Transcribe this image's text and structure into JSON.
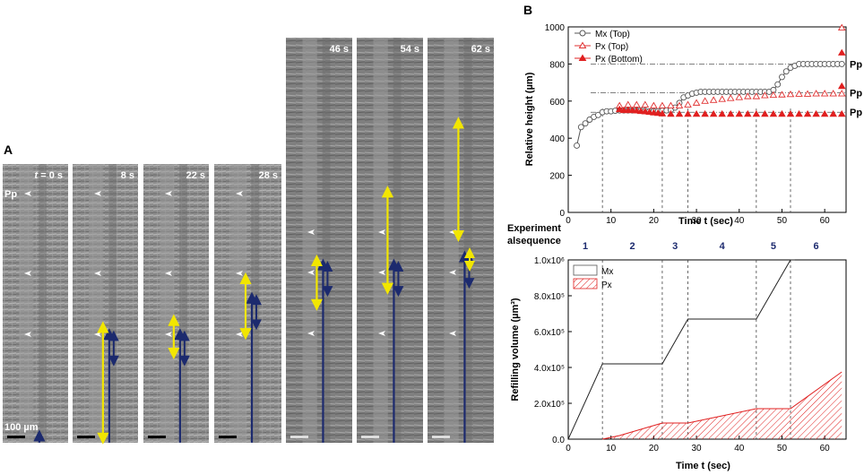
{
  "figure": {
    "panel_a_label": "A",
    "panel_b_label": "B",
    "pp_label": "Pp",
    "scale_bar_label": "100 µm",
    "t_prefix": "t",
    "frames": [
      {
        "time": "= 0 s",
        "arrowheads": 3
      },
      {
        "time": "8 s",
        "arrowheads": 3,
        "yellow": [
          0.585,
          0.985
        ],
        "blue": [
          0.61,
          1.0
        ]
      },
      {
        "time": "22 s",
        "arrowheads": 3,
        "yellow": [
          0.56,
          0.68
        ],
        "blue": [
          0.61,
          1.0
        ]
      },
      {
        "time": "28 s",
        "arrowheads": 3,
        "yellow": [
          0.41,
          0.61
        ],
        "blue": [
          0.48,
          1.0
        ]
      },
      {
        "time": "46 s",
        "arrowheads": 3,
        "yellow": [
          0.55,
          0.66
        ],
        "blue": [
          0.56,
          1.0
        ]
      },
      {
        "time": "54 s",
        "arrowheads": 3,
        "yellow": [
          0.38,
          0.62
        ],
        "blue": [
          0.56,
          1.0
        ]
      },
      {
        "time": "62 s",
        "arrowheads": 3,
        "yellow": [
          0.21,
          0.49
        ],
        "blue": [
          0.54,
          1.0
        ]
      }
    ],
    "experiment_label_line1": "Experiment",
    "experiment_label_line2": "alsequence",
    "sequences": [
      "1",
      "2",
      "3",
      "4",
      "5",
      "6"
    ],
    "right_pp_labels": [
      "Pp",
      "Pp",
      "Pp"
    ]
  },
  "chart_data": [
    {
      "type": "scatter",
      "title": "",
      "xlabel": "Time t (sec)",
      "ylabel": "Relative height (µm)",
      "xlim": [
        0,
        65
      ],
      "ylim": [
        0,
        1000
      ],
      "xticks": [
        0,
        10,
        20,
        30,
        40,
        50,
        60
      ],
      "yticks": [
        0,
        200,
        400,
        600,
        800,
        1000
      ],
      "legend": "top-left",
      "series": [
        {
          "name": "Mx (Top)",
          "marker": "open-circle",
          "color": "#555555",
          "x": [
            2,
            3,
            4,
            5,
            6,
            7,
            8,
            9,
            10,
            11,
            12,
            13,
            14,
            15,
            16,
            17,
            18,
            19,
            20,
            21,
            22,
            23,
            24,
            25,
            26,
            27,
            28,
            29,
            30,
            31,
            32,
            33,
            34,
            35,
            36,
            37,
            38,
            39,
            40,
            41,
            42,
            43,
            44,
            45,
            46,
            47,
            48,
            49,
            50,
            51,
            52,
            53,
            54,
            55,
            56,
            57,
            58,
            59,
            60,
            61,
            62,
            63,
            64
          ],
          "y": [
            360,
            460,
            480,
            500,
            515,
            525,
            540,
            545,
            545,
            548,
            550,
            550,
            550,
            550,
            550,
            550,
            548,
            545,
            545,
            545,
            548,
            550,
            552,
            565,
            590,
            620,
            630,
            640,
            645,
            650,
            650,
            650,
            650,
            650,
            650,
            650,
            650,
            650,
            650,
            650,
            650,
            650,
            650,
            650,
            650,
            650,
            660,
            690,
            730,
            760,
            780,
            790,
            800,
            800,
            800,
            800,
            800,
            800,
            800,
            800,
            800,
            800,
            800
          ]
        },
        {
          "name": "Px (Top)",
          "marker": "open-triangle",
          "color": "#e03030",
          "x": [
            12,
            14,
            16,
            18,
            20,
            22,
            24,
            26,
            28,
            30,
            32,
            34,
            36,
            38,
            40,
            42,
            44,
            46,
            48,
            50,
            52,
            54,
            56,
            58,
            60,
            62,
            64
          ],
          "y": [
            575,
            580,
            580,
            580,
            575,
            575,
            575,
            575,
            580,
            590,
            600,
            605,
            610,
            615,
            620,
            625,
            625,
            630,
            632,
            634,
            636,
            638,
            638,
            640,
            640,
            640,
            640
          ]
        },
        {
          "name": "Px (Bottom)",
          "marker": "filled-triangle",
          "color": "#e02020",
          "x": [
            12,
            13,
            14,
            15,
            16,
            17,
            18,
            19,
            20,
            21,
            22,
            24,
            26,
            28,
            30,
            32,
            34,
            36,
            38,
            40,
            42,
            44,
            46,
            48,
            50,
            52,
            54,
            56,
            58,
            60,
            62,
            64
          ],
          "y": [
            555,
            550,
            550,
            550,
            548,
            545,
            543,
            540,
            537,
            535,
            532,
            530,
            530,
            530,
            530,
            530,
            530,
            530,
            530,
            530,
            530,
            530,
            530,
            530,
            530,
            530,
            530,
            530,
            530,
            530,
            530,
            530
          ]
        },
        {
          "name": "Px (Top) outliers",
          "marker": "open-triangle",
          "color": "#e03030",
          "x": [
            64
          ],
          "y": [
            995
          ]
        },
        {
          "name": "Px (Bottom) outliers",
          "marker": "filled-triangle",
          "color": "#e02020",
          "x": [
            64,
            64
          ],
          "y": [
            860,
            680
          ]
        }
      ],
      "reference_lines_y": [
        800,
        645,
        540
      ],
      "phase_boundaries_x": [
        8,
        22,
        28,
        44,
        52
      ]
    },
    {
      "type": "area",
      "title": "",
      "xlabel": "Time t (sec)",
      "ylabel": "Refilling volume (µm³)",
      "xlim": [
        0,
        65
      ],
      "ylim": [
        0,
        1000000
      ],
      "xticks": [
        0,
        10,
        20,
        30,
        40,
        50,
        60
      ],
      "ytick_labels": [
        "0.0",
        "2.0x10⁵",
        "4.0x10⁵",
        "6.0x10⁵",
        "8.0x10⁵",
        "1.0x10⁶"
      ],
      "legend": "top-left",
      "series": [
        {
          "name": "Mx",
          "color": "#222222",
          "style": "line",
          "x": [
            0,
            8,
            22,
            28,
            44,
            52,
            53
          ],
          "y": [
            0,
            420000,
            420000,
            670000,
            670000,
            1000000,
            1000000
          ]
        },
        {
          "name": "Px",
          "color": "#e02020",
          "style": "hatched-area",
          "x": [
            8,
            12,
            22,
            28,
            44,
            52,
            64
          ],
          "y": [
            0,
            20000,
            90000,
            90000,
            170000,
            170000,
            375000
          ]
        }
      ],
      "phase_boundaries_x": [
        8,
        22,
        28,
        44,
        52
      ]
    }
  ]
}
